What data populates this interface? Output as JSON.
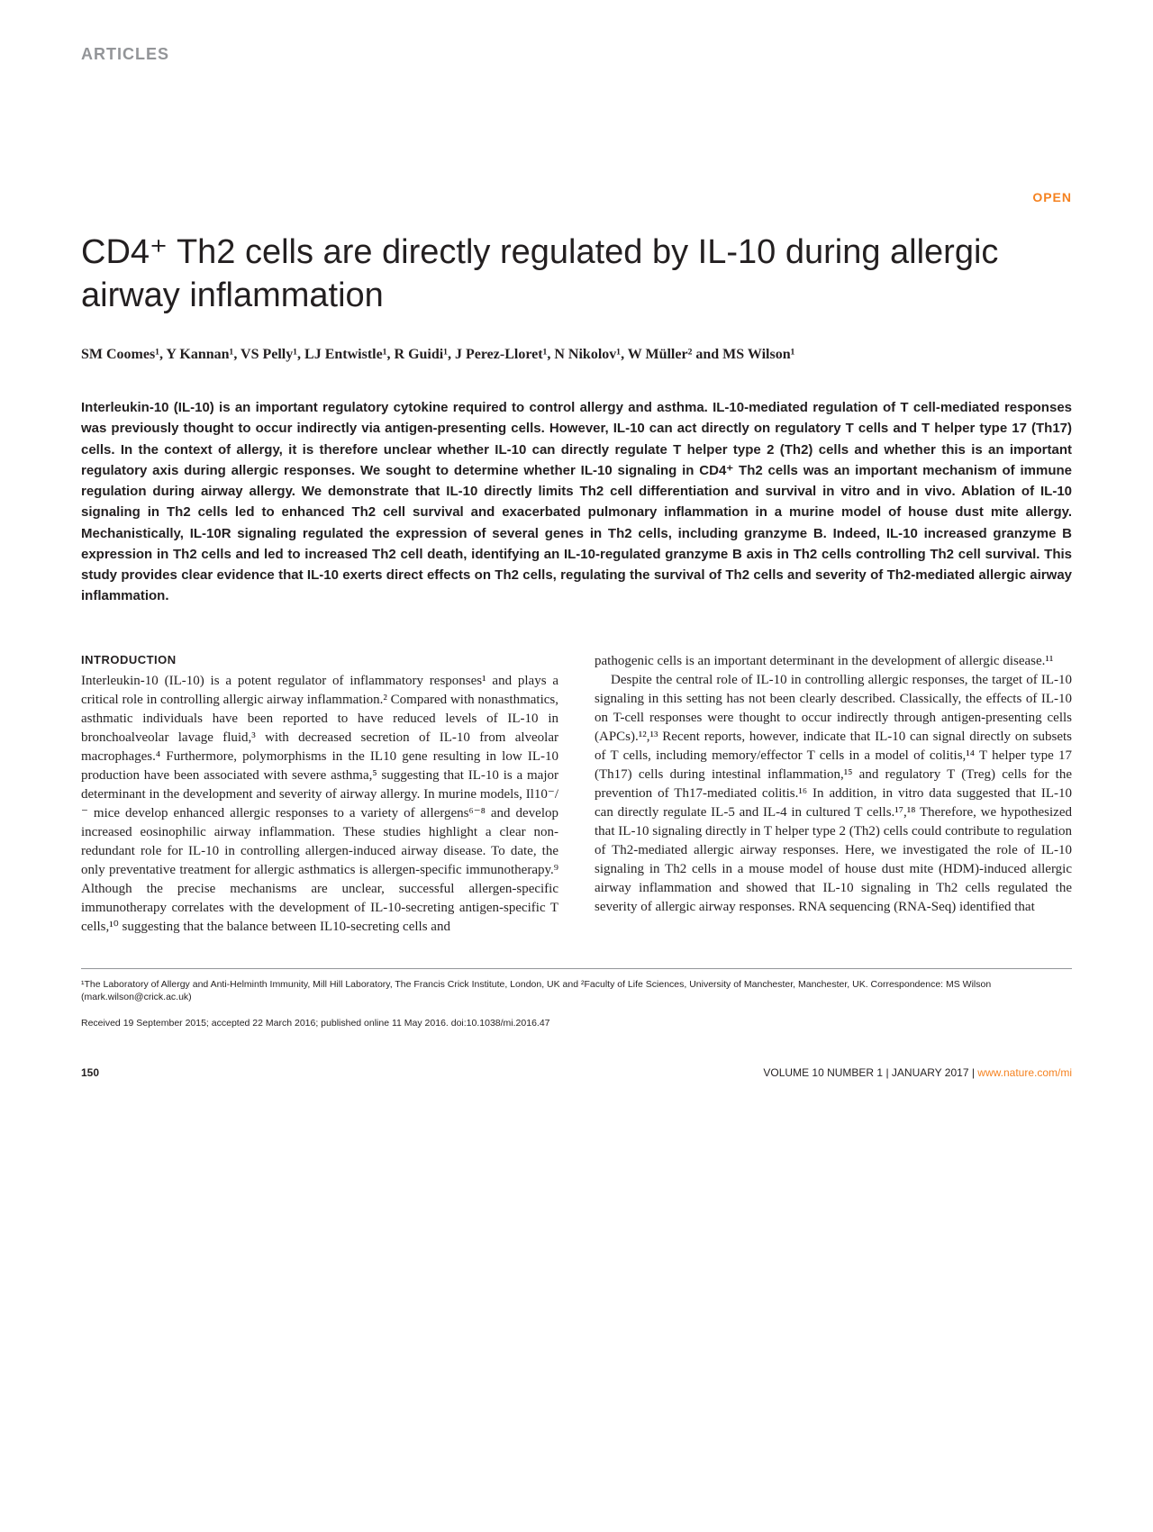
{
  "header": {
    "section_label": "ARTICLES",
    "open_badge": "OPEN"
  },
  "title": "CD4⁺ Th2 cells are directly regulated by IL-10 during allergic airway inflammation",
  "authors_line": "SM Coomes¹, Y Kannan¹, VS Pelly¹, LJ Entwistle¹, R Guidi¹, J Perez-Lloret¹, N Nikolov¹, W Müller² and MS Wilson¹",
  "abstract": "Interleukin-10 (IL-10) is an important regulatory cytokine required to control allergy and asthma. IL-10-mediated regulation of T cell-mediated responses was previously thought to occur indirectly via antigen-presenting cells. However, IL-10 can act directly on regulatory T cells and T helper type 17 (Th17) cells. In the context of allergy, it is therefore unclear whether IL-10 can directly regulate T helper type 2 (Th2) cells and whether this is an important regulatory axis during allergic responses. We sought to determine whether IL-10 signaling in CD4⁺ Th2 cells was an important mechanism of immune regulation during airway allergy. We demonstrate that IL-10 directly limits Th2 cell differentiation and survival in vitro and in vivo. Ablation of IL-10 signaling in Th2 cells led to enhanced Th2 cell survival and exacerbated pulmonary inflammation in a murine model of house dust mite allergy. Mechanistically, IL-10R signaling regulated the expression of several genes in Th2 cells, including granzyme B. Indeed, IL-10 increased granzyme B expression in Th2 cells and led to increased Th2 cell death, identifying an IL-10-regulated granzyme B axis in Th2 cells controlling Th2 cell survival. This study provides clear evidence that IL-10 exerts direct effects on Th2 cells, regulating the survival of Th2 cells and severity of Th2-mediated allergic airway inflammation.",
  "intro_heading": "INTRODUCTION",
  "column_left": "Interleukin-10 (IL-10) is a potent regulator of inflammatory responses¹ and plays a critical role in controlling allergic airway inflammation.² Compared with nonasthmatics, asthmatic individuals have been reported to have reduced levels of IL-10 in bronchoalveolar lavage fluid,³ with decreased secretion of IL-10 from alveolar macrophages.⁴ Furthermore, polymorphisms in the IL10 gene resulting in low IL-10 production have been associated with severe asthma,⁵ suggesting that IL-10 is a major determinant in the development and severity of airway allergy. In murine models, Il10⁻/⁻ mice develop enhanced allergic responses to a variety of allergens⁶⁻⁸ and develop increased eosinophilic airway inflammation. These studies highlight a clear non-redundant role for IL-10 in controlling allergen-induced airway disease. To date, the only preventative treatment for allergic asthmatics is allergen-specific immunotherapy.⁹ Although the precise mechanisms are unclear, successful allergen-specific immunotherapy correlates with the development of IL-10-secreting antigen-specific T cells,¹⁰ suggesting that the balance between IL10-secreting cells and",
  "column_right_p1": "pathogenic cells is an important determinant in the development of allergic disease.¹¹",
  "column_right_p2": "Despite the central role of IL-10 in controlling allergic responses, the target of IL-10 signaling in this setting has not been clearly described. Classically, the effects of IL-10 on T-cell responses were thought to occur indirectly through antigen-presenting cells (APCs).¹²,¹³ Recent reports, however, indicate that IL-10 can signal directly on subsets of T cells, including memory/effector T cells in a model of colitis,¹⁴ T helper type 17 (Th17) cells during intestinal inflammation,¹⁵ and regulatory T (Treg) cells for the prevention of Th17-mediated colitis.¹⁶ In addition, in vitro data suggested that IL-10 can directly regulate IL-5 and IL-4 in cultured T cells.¹⁷,¹⁸ Therefore, we hypothesized that IL-10 signaling directly in T helper type 2 (Th2) cells could contribute to regulation of Th2-mediated allergic airway responses. Here, we investigated the role of IL-10 signaling in Th2 cells in a mouse model of house dust mite (HDM)-induced allergic airway inflammation and showed that IL-10 signaling in Th2 cells regulated the severity of allergic airway responses. RNA sequencing (RNA-Seq) identified that",
  "footnotes": {
    "affiliations": "¹The Laboratory of Allergy and Anti-Helminth Immunity, Mill Hill Laboratory, The Francis Crick Institute, London, UK and ²Faculty of Life Sciences, University of Manchester, Manchester, UK. Correspondence: MS Wilson (mark.wilson@crick.ac.uk)",
    "received": "Received 19 September 2015; accepted 22 March 2016; published online 11 May 2016. doi:10.1038/mi.2016.47"
  },
  "footer": {
    "page_number": "150",
    "volume_info": "VOLUME 10 NUMBER 1 | JANUARY 2017 | ",
    "url": "www.nature.com/mi"
  },
  "colors": {
    "gray": "#939598",
    "orange": "#f58220",
    "text": "#231f20",
    "background": "#ffffff"
  },
  "typography": {
    "title_fontsize": 38,
    "body_fontsize": 15,
    "abstract_fontsize": 15,
    "footnote_fontsize": 10.5
  }
}
